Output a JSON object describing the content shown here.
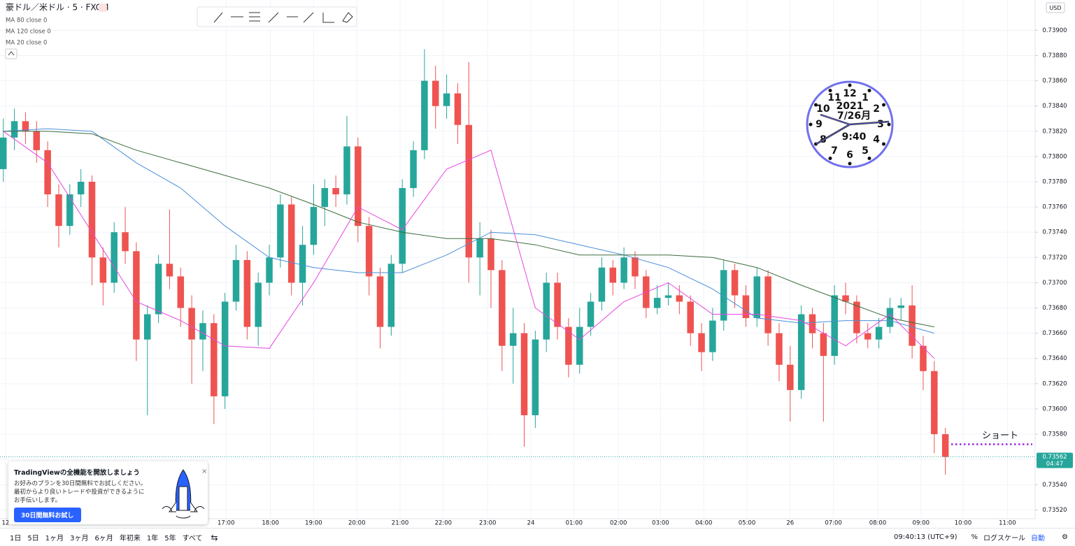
{
  "chart_data": {
    "type": "candlestick",
    "title": "豪ドル／米ドル · 5 · FXCM",
    "currency": "USD",
    "up_color": "#26a69a",
    "down_color": "#ef5350",
    "grid": true,
    "open": [
      0.7379,
      0.73815,
      0.73828,
      0.7382,
      0.73805,
      0.7377,
      0.73745,
      0.7377,
      0.7378,
      0.7372,
      0.737,
      0.7374,
      0.73725,
      0.73655,
      0.73675,
      0.73715,
      0.73705,
      0.7368,
      0.73655,
      0.73668,
      0.7361,
      0.73685,
      0.73718,
      0.73665,
      0.737,
      0.7372,
      0.73762,
      0.737,
      0.7373,
      0.7376,
      0.73775,
      0.7377,
      0.73808,
      0.73745,
      0.73705,
      0.73665,
      0.73715,
      0.73775,
      0.73805,
      0.7386,
      0.7384,
      0.7385,
      0.73825,
      0.7372,
      0.73735,
      0.7371,
      0.7365,
      0.7366,
      0.73595,
      0.73655,
      0.737,
      0.73665,
      0.73635,
      0.73665,
      0.73685,
      0.73712,
      0.737,
      0.7372,
      0.73705,
      0.7368,
      0.73688,
      0.7369,
      0.73685,
      0.7366,
      0.73645,
      0.7367,
      0.7371,
      0.7369,
      0.73672,
      0.73705,
      0.7366,
      0.73635,
      0.73615,
      0.73675,
      0.7366,
      0.73642,
      0.7369,
      0.73685,
      0.7366,
      0.73655,
      0.73665,
      0.7368,
      0.73682,
      0.7365,
      0.7363,
      0.7358
    ],
    "high": [
      0.7383,
      0.73838,
      0.73835,
      0.73828,
      0.73812,
      0.73778,
      0.73778,
      0.7379,
      0.73785,
      0.73728,
      0.73748,
      0.7376,
      0.73732,
      0.73682,
      0.73722,
      0.73758,
      0.73712,
      0.7369,
      0.73678,
      0.73675,
      0.73692,
      0.7373,
      0.73725,
      0.73708,
      0.7373,
      0.7377,
      0.73768,
      0.73745,
      0.73778,
      0.73782,
      0.73785,
      0.73832,
      0.73815,
      0.73752,
      0.73712,
      0.73722,
      0.73782,
      0.73812,
      0.73885,
      0.73872,
      0.73865,
      0.73858,
      0.73875,
      0.73748,
      0.73742,
      0.73718,
      0.7368,
      0.73668,
      0.73662,
      0.73708,
      0.73708,
      0.73672,
      0.7368,
      0.73692,
      0.7372,
      0.73718,
      0.73728,
      0.73725,
      0.7371,
      0.73698,
      0.737,
      0.73698,
      0.7369,
      0.73668,
      0.7368,
      0.73718,
      0.73715,
      0.73698,
      0.73712,
      0.7371,
      0.73668,
      0.7365,
      0.73682,
      0.7368,
      0.73668,
      0.73698,
      0.737,
      0.7369,
      0.73668,
      0.73672,
      0.73688,
      0.73688,
      0.73698,
      0.73658,
      0.73638,
      0.73585
    ],
    "low": [
      0.7378,
      0.73805,
      0.7381,
      0.73795,
      0.7376,
      0.73728,
      0.73738,
      0.7376,
      0.73698,
      0.73682,
      0.73692,
      0.73715,
      0.73638,
      0.73595,
      0.73668,
      0.73695,
      0.73665,
      0.7362,
      0.7363,
      0.73588,
      0.736,
      0.73678,
      0.73655,
      0.7365,
      0.7369,
      0.73712,
      0.7369,
      0.73682,
      0.73722,
      0.73745,
      0.7376,
      0.73762,
      0.73732,
      0.7369,
      0.73648,
      0.73658,
      0.73708,
      0.73768,
      0.73798,
      0.73822,
      0.7383,
      0.7381,
      0.737,
      0.7369,
      0.7368,
      0.7363,
      0.7362,
      0.7357,
      0.73585,
      0.73645,
      0.73655,
      0.73625,
      0.73628,
      0.73658,
      0.73678,
      0.7369,
      0.73695,
      0.73695,
      0.73672,
      0.73675,
      0.73682,
      0.73675,
      0.7365,
      0.7363,
      0.73638,
      0.73662,
      0.7368,
      0.73665,
      0.73665,
      0.7365,
      0.73622,
      0.7359,
      0.73608,
      0.73648,
      0.7359,
      0.73635,
      0.73675,
      0.73652,
      0.73648,
      0.73648,
      0.7366,
      0.7367,
      0.7364,
      0.73615,
      0.73565,
      0.73548
    ],
    "close": [
      0.73815,
      0.73828,
      0.7382,
      0.73805,
      0.7377,
      0.73745,
      0.7377,
      0.7378,
      0.7372,
      0.737,
      0.7374,
      0.73725,
      0.73655,
      0.73675,
      0.73715,
      0.73705,
      0.7368,
      0.73655,
      0.73668,
      0.7361,
      0.73685,
      0.73718,
      0.73665,
      0.737,
      0.7372,
      0.73762,
      0.737,
      0.7373,
      0.7376,
      0.73775,
      0.7377,
      0.73808,
      0.73745,
      0.73705,
      0.73665,
      0.73715,
      0.73775,
      0.73805,
      0.7386,
      0.7384,
      0.7385,
      0.73825,
      0.7372,
      0.73735,
      0.7371,
      0.7365,
      0.7366,
      0.73595,
      0.73655,
      0.737,
      0.73665,
      0.73635,
      0.73665,
      0.73685,
      0.73712,
      0.737,
      0.7372,
      0.73705,
      0.7368,
      0.73688,
      0.7369,
      0.73685,
      0.7366,
      0.73645,
      0.7367,
      0.7371,
      0.7369,
      0.73672,
      0.73705,
      0.7366,
      0.73635,
      0.73615,
      0.73675,
      0.7366,
      0.73642,
      0.7369,
      0.73685,
      0.7366,
      0.73655,
      0.73665,
      0.7368,
      0.73682,
      0.7365,
      0.7363,
      0.7358,
      0.73562
    ],
    "series": [
      {
        "name": "MA 80 close 0",
        "color": "#4a8fd8",
        "x": [
          0,
          4,
          8,
          12,
          16,
          20,
          24,
          28,
          32,
          36,
          40,
          44,
          48,
          52,
          56,
          60,
          64,
          68,
          72,
          76,
          80,
          84
        ],
        "values": [
          0.7382,
          0.73822,
          0.7382,
          0.73795,
          0.73775,
          0.73745,
          0.7372,
          0.73712,
          0.73708,
          0.73708,
          0.73722,
          0.7374,
          0.73738,
          0.7373,
          0.73722,
          0.73712,
          0.73695,
          0.73672,
          0.73668,
          0.7367,
          0.7367,
          0.7366
        ]
      },
      {
        "name": "MA 120 close 0",
        "color": "#3d6b3d",
        "x": [
          0,
          4,
          8,
          12,
          16,
          20,
          24,
          28,
          32,
          36,
          40,
          44,
          48,
          52,
          56,
          60,
          64,
          68,
          72,
          76,
          80,
          84
        ],
        "values": [
          0.7382,
          0.7382,
          0.73818,
          0.73805,
          0.73795,
          0.73785,
          0.73775,
          0.73762,
          0.73748,
          0.7374,
          0.73735,
          0.73735,
          0.7373,
          0.73722,
          0.73722,
          0.73722,
          0.7372,
          0.73712,
          0.73698,
          0.73685,
          0.73672,
          0.73665
        ]
      },
      {
        "name": "MA 20 close 0",
        "color": "#e845e0",
        "x": [
          0,
          4,
          8,
          12,
          16,
          20,
          24,
          28,
          32,
          36,
          40,
          44,
          48,
          52,
          56,
          60,
          64,
          68,
          72,
          76,
          80,
          84
        ],
        "values": [
          0.7382,
          0.73795,
          0.7374,
          0.73685,
          0.7367,
          0.7365,
          0.73648,
          0.737,
          0.7376,
          0.73742,
          0.7379,
          0.73805,
          0.7368,
          0.73655,
          0.73685,
          0.737,
          0.73675,
          0.73675,
          0.7367,
          0.7365,
          0.73675,
          0.7364
        ]
      }
    ],
    "xlim": [
      -0.3,
      93.1
    ],
    "xticks": [
      {
        "value": 0.2,
        "label": "12"
      },
      {
        "value": 20.1,
        "label": "17:00"
      },
      {
        "value": 24.1,
        "label": "18:00"
      },
      {
        "value": 28.0,
        "label": "19:00"
      },
      {
        "value": 31.9,
        "label": "20:00"
      },
      {
        "value": 35.8,
        "label": "21:00"
      },
      {
        "value": 39.7,
        "label": "22:00"
      },
      {
        "value": 43.7,
        "label": "23:00"
      },
      {
        "value": 47.6,
        "label": "24"
      },
      {
        "value": 51.5,
        "label": "01:00"
      },
      {
        "value": 55.5,
        "label": "02:00"
      },
      {
        "value": 59.3,
        "label": "03:00"
      },
      {
        "value": 63.2,
        "label": "04:00"
      },
      {
        "value": 67.1,
        "label": "05:00"
      },
      {
        "value": 71.0,
        "label": "26"
      },
      {
        "value": 74.9,
        "label": "07:00"
      },
      {
        "value": 78.9,
        "label": "08:00"
      },
      {
        "value": 82.8,
        "label": "09:00"
      },
      {
        "value": 86.6,
        "label": "10:00"
      },
      {
        "value": 90.6,
        "label": "11:00"
      }
    ],
    "ylim": [
      0.73513,
      0.73924
    ],
    "yticks": [
      {
        "value": 0.7352,
        "label": "0.73520"
      },
      {
        "value": 0.7354,
        "label": "0.73540"
      },
      {
        "value": 0.7356,
        "label": "0.73560"
      },
      {
        "value": 0.7358,
        "label": "0.73580"
      },
      {
        "value": 0.736,
        "label": "0.73600"
      },
      {
        "value": 0.7362,
        "label": "0.73620"
      },
      {
        "value": 0.7364,
        "label": "0.73640"
      },
      {
        "value": 0.7366,
        "label": "0.73660"
      },
      {
        "value": 0.7368,
        "label": "0.73680"
      },
      {
        "value": 0.737,
        "label": "0.73700"
      },
      {
        "value": 0.7372,
        "label": "0.73720"
      },
      {
        "value": 0.7374,
        "label": "0.73740"
      },
      {
        "value": 0.7376,
        "label": "0.73760"
      },
      {
        "value": 0.7378,
        "label": "0.73780"
      },
      {
        "value": 0.738,
        "label": "0.73800"
      },
      {
        "value": 0.7382,
        "label": "0.73820"
      },
      {
        "value": 0.7384,
        "label": "0.73840"
      },
      {
        "value": 0.7386,
        "label": "0.73860"
      },
      {
        "value": 0.7388,
        "label": "0.73880"
      },
      {
        "value": 0.739,
        "label": "0.73900"
      }
    ],
    "last_price": 0.73562,
    "countdown": "04:47",
    "annotation": {
      "text": "ショート",
      "value": 0.73572,
      "color": "#9c27e0"
    }
  },
  "clock": {
    "numbers": [
      "12",
      "1",
      "2",
      "3",
      "4",
      "5",
      "6",
      "7",
      "8",
      "9",
      "10",
      "11"
    ],
    "year": "2021",
    "date": "7/26月",
    "time": "9:40"
  },
  "promo": {
    "title": "TradingViewの全機能を開放しましょう",
    "lines": [
      "お好みのプランを30日間無料でお試しください。",
      "最初からより良いトレードや投資ができるように",
      "お手伝いします。"
    ],
    "button": "30日間無料お試し"
  },
  "toolbar": {
    "ranges": [
      "1日",
      "5日",
      "1ヶ月",
      "3ヶ月",
      "6ヶ月",
      "年初来",
      "1年",
      "5年",
      "すべて"
    ],
    "time": "09:40:13 (UTC+9)",
    "percent": "%",
    "log": "ログスケール",
    "auto": "自動"
  }
}
